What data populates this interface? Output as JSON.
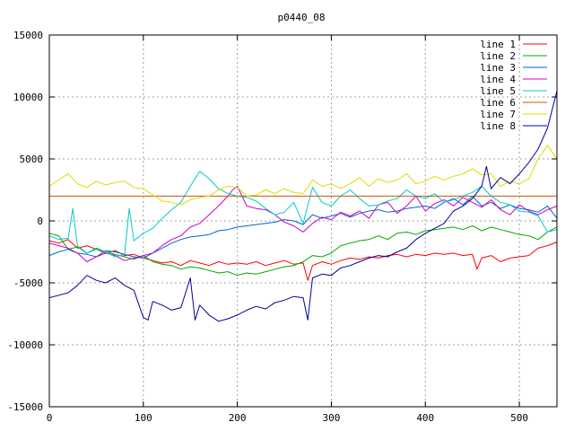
{
  "chart_data": {
    "type": "line",
    "title": "p0440_08",
    "xlabel": "",
    "ylabel": "",
    "xlim": [
      0,
      540
    ],
    "ylim": [
      -15000,
      15000
    ],
    "xticks": [
      0,
      100,
      200,
      300,
      400,
      500
    ],
    "yticks": [
      -15000,
      -10000,
      -5000,
      0,
      5000,
      10000,
      15000
    ],
    "grid": true,
    "legend": "top-right",
    "series": [
      {
        "name": "line 1",
        "color": "#ff0000",
        "x": [
          0,
          10,
          20,
          30,
          40,
          50,
          60,
          70,
          80,
          90,
          100,
          110,
          120,
          130,
          140,
          150,
          160,
          170,
          180,
          190,
          200,
          210,
          220,
          230,
          240,
          250,
          260,
          270,
          275,
          280,
          290,
          300,
          310,
          320,
          330,
          340,
          350,
          360,
          370,
          380,
          390,
          400,
          410,
          420,
          430,
          440,
          450,
          455,
          460,
          470,
          480,
          490,
          500,
          510,
          520,
          530,
          540
        ],
        "y": [
          -1600,
          -1800,
          -1500,
          -2200,
          -2000,
          -2300,
          -2600,
          -2400,
          -2800,
          -2700,
          -3000,
          -3200,
          -3400,
          -3300,
          -3600,
          -3200,
          -3400,
          -3600,
          -3300,
          -3500,
          -3400,
          -3500,
          -3300,
          -3600,
          -3400,
          -3200,
          -3500,
          -3400,
          -4800,
          -3600,
          -3300,
          -3500,
          -3200,
          -3000,
          -3100,
          -2900,
          -3000,
          -2800,
          -2700,
          -2900,
          -2700,
          -2800,
          -2600,
          -2700,
          -2600,
          -2800,
          -2700,
          -3900,
          -3000,
          -2800,
          -3300,
          -3000,
          -2900,
          -2800,
          -2200,
          -2000,
          -1700
        ]
      },
      {
        "name": "line 2",
        "color": "#00aa00",
        "x": [
          0,
          10,
          20,
          30,
          40,
          50,
          60,
          70,
          80,
          90,
          100,
          110,
          120,
          130,
          140,
          150,
          160,
          170,
          180,
          190,
          200,
          210,
          220,
          230,
          240,
          250,
          260,
          270,
          280,
          290,
          300,
          310,
          320,
          330,
          340,
          350,
          360,
          370,
          380,
          390,
          400,
          410,
          420,
          430,
          440,
          450,
          460,
          470,
          480,
          490,
          500,
          510,
          520,
          530,
          540
        ],
        "y": [
          -1000,
          -1200,
          -2300,
          -2100,
          -2600,
          -2200,
          -2500,
          -2700,
          -2900,
          -3100,
          -2800,
          -3300,
          -3500,
          -3600,
          -3900,
          -3700,
          -3800,
          -4000,
          -4200,
          -4100,
          -4400,
          -4200,
          -4300,
          -4100,
          -3900,
          -3700,
          -3600,
          -3300,
          -2800,
          -2900,
          -2600,
          -2000,
          -1800,
          -1600,
          -1500,
          -1200,
          -1500,
          -1000,
          -900,
          -1100,
          -800,
          -700,
          -600,
          -500,
          -700,
          -400,
          -800,
          -500,
          -700,
          -900,
          -1100,
          -1200,
          -1500,
          -900,
          -500
        ]
      },
      {
        "name": "line 3",
        "color": "#0066cc",
        "x": [
          0,
          10,
          20,
          30,
          40,
          50,
          60,
          70,
          80,
          90,
          100,
          110,
          120,
          130,
          140,
          150,
          160,
          170,
          180,
          190,
          200,
          210,
          220,
          230,
          240,
          250,
          260,
          270,
          280,
          290,
          300,
          310,
          320,
          330,
          340,
          350,
          360,
          370,
          380,
          390,
          400,
          410,
          420,
          430,
          440,
          450,
          460,
          470,
          480,
          490,
          500,
          510,
          520,
          530,
          540
        ],
        "y": [
          -2800,
          -2500,
          -2300,
          -2600,
          -2700,
          -2900,
          -2400,
          -2500,
          -2700,
          -2900,
          -3000,
          -2600,
          -2200,
          -1800,
          -1500,
          -1300,
          -1200,
          -1100,
          -800,
          -700,
          -500,
          -400,
          -300,
          -200,
          -100,
          100,
          0,
          -300,
          500,
          200,
          400,
          600,
          300,
          600,
          800,
          900,
          700,
          800,
          1000,
          1100,
          1200,
          1000,
          1500,
          1800,
          1300,
          2000,
          1200,
          1500,
          1000,
          1300,
          1000,
          900,
          700,
          1200,
          200
        ]
      },
      {
        "name": "line 4",
        "color": "#cc00cc",
        "x": [
          0,
          10,
          20,
          30,
          40,
          50,
          60,
          70,
          80,
          90,
          100,
          110,
          120,
          130,
          140,
          150,
          160,
          170,
          180,
          190,
          195,
          200,
          210,
          220,
          230,
          240,
          250,
          260,
          270,
          280,
          290,
          300,
          310,
          320,
          330,
          340,
          350,
          360,
          370,
          380,
          390,
          400,
          410,
          420,
          430,
          440,
          450,
          460,
          470,
          480,
          490,
          500,
          510,
          520,
          530,
          540
        ],
        "y": [
          -1800,
          -2000,
          -2200,
          -2600,
          -3300,
          -2900,
          -2600,
          -2800,
          -3200,
          -3000,
          -2800,
          -2600,
          -2000,
          -1500,
          -1200,
          -500,
          -200,
          500,
          1200,
          2000,
          2500,
          2800,
          1200,
          1000,
          900,
          500,
          -100,
          -400,
          -900,
          -200,
          300,
          100,
          700,
          400,
          800,
          200,
          1300,
          1500,
          600,
          1200,
          2000,
          800,
          1400,
          1700,
          1200,
          1900,
          1500,
          1100,
          1700,
          900,
          500,
          1300,
          800,
          500,
          900,
          1200
        ]
      },
      {
        "name": "line 5",
        "color": "#00cccc",
        "x": [
          0,
          10,
          20,
          25,
          30,
          40,
          50,
          60,
          70,
          80,
          85,
          90,
          100,
          110,
          120,
          130,
          140,
          150,
          160,
          170,
          180,
          190,
          200,
          210,
          220,
          230,
          240,
          250,
          260,
          270,
          280,
          290,
          300,
          310,
          320,
          330,
          340,
          350,
          360,
          370,
          380,
          390,
          400,
          410,
          420,
          430,
          440,
          450,
          460,
          470,
          480,
          490,
          500,
          510,
          520,
          530,
          540
        ],
        "y": [
          -1200,
          -1500,
          -1400,
          1000,
          -2000,
          -2600,
          -2300,
          -2500,
          -2900,
          -2700,
          1000,
          -1600,
          -1000,
          -600,
          200,
          900,
          1500,
          2800,
          4000,
          3400,
          2600,
          2200,
          2000,
          1900,
          1600,
          1000,
          500,
          700,
          1500,
          -200,
          2700,
          1500,
          1200,
          2000,
          2500,
          1800,
          1200,
          1300,
          1600,
          1800,
          2500,
          2000,
          1800,
          2200,
          1500,
          1700,
          2000,
          2300,
          2800,
          2000,
          1500,
          1300,
          800,
          700,
          400,
          -900,
          -700
        ]
      },
      {
        "name": "line 6",
        "color": "#cc5500",
        "x": [
          0,
          540
        ],
        "y": [
          2000,
          2000
        ]
      },
      {
        "name": "line 7",
        "color": "#dddd00",
        "x": [
          0,
          10,
          20,
          30,
          40,
          50,
          60,
          70,
          80,
          90,
          100,
          110,
          120,
          130,
          140,
          150,
          160,
          170,
          180,
          190,
          200,
          210,
          220,
          230,
          240,
          250,
          260,
          270,
          280,
          290,
          300,
          310,
          320,
          330,
          340,
          350,
          360,
          370,
          380,
          390,
          400,
          410,
          420,
          430,
          440,
          450,
          460,
          470,
          480,
          490,
          500,
          510,
          520,
          530,
          540
        ],
        "y": [
          2800,
          3300,
          3800,
          3000,
          2700,
          3200,
          2900,
          3100,
          3200,
          2700,
          2600,
          2100,
          1600,
          1500,
          1300,
          1700,
          1900,
          2000,
          2500,
          2800,
          2700,
          2000,
          2100,
          2500,
          2200,
          2600,
          2300,
          2200,
          3300,
          2800,
          3000,
          2600,
          3000,
          3500,
          2800,
          3400,
          3100,
          3300,
          3800,
          3000,
          3200,
          3600,
          3300,
          3600,
          3800,
          4200,
          3700,
          3800,
          2800,
          3200,
          3000,
          3400,
          5000,
          6100,
          5000
        ]
      },
      {
        "name": "line 8",
        "color": "#000099",
        "x": [
          0,
          10,
          20,
          30,
          40,
          50,
          60,
          70,
          80,
          90,
          100,
          105,
          110,
          120,
          130,
          140,
          150,
          155,
          160,
          170,
          180,
          190,
          200,
          210,
          220,
          230,
          240,
          250,
          260,
          270,
          275,
          280,
          290,
          300,
          310,
          320,
          330,
          340,
          350,
          360,
          370,
          380,
          390,
          400,
          410,
          420,
          430,
          440,
          450,
          460,
          465,
          470,
          480,
          490,
          500,
          510,
          520,
          530,
          540
        ],
        "y": [
          -6200,
          -6000,
          -5800,
          -5200,
          -4400,
          -4800,
          -5000,
          -4600,
          -5200,
          -5600,
          -7800,
          -8000,
          -6500,
          -6800,
          -7200,
          -7000,
          -4600,
          -8000,
          -6800,
          -7600,
          -8100,
          -7900,
          -7600,
          -7200,
          -6900,
          -7100,
          -6600,
          -6400,
          -6100,
          -6200,
          -8000,
          -4600,
          -4300,
          -4400,
          -3800,
          -3600,
          -3300,
          -3000,
          -2800,
          -2900,
          -2500,
          -2200,
          -1500,
          -1000,
          -600,
          -200,
          800,
          1200,
          1800,
          2800,
          4400,
          2600,
          3500,
          3000,
          3800,
          4700,
          5800,
          7500,
          10500
        ]
      }
    ]
  }
}
